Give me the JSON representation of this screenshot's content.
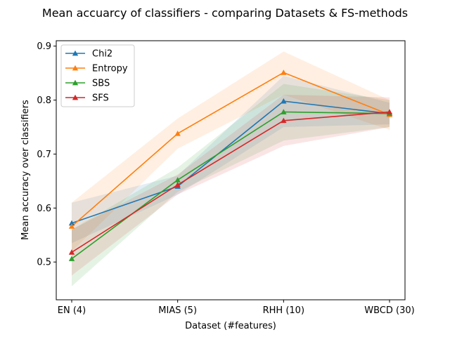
{
  "chart_data": {
    "type": "line",
    "title": "Mean accuarcy of classifiers - comparing Datasets & FS-methods",
    "xlabel": "Dataset (#features)",
    "ylabel": "Mean accuracy over classifiers",
    "categories": [
      "EN (4)",
      "MIAS (5)",
      "RHH (10)",
      "WBCD (30)"
    ],
    "ylim": [
      0.43,
      0.91
    ],
    "yticks": [
      0.5,
      0.6,
      0.7,
      0.8,
      0.9
    ],
    "ytick_labels": [
      "0.5",
      "0.6",
      "0.7",
      "0.8",
      "0.9"
    ],
    "grid": false,
    "legend_position": "top-left",
    "marker": "triangle-up",
    "band_opacity": 0.12,
    "series": [
      {
        "name": "Chi2",
        "color": "#1f77b4",
        "values": [
          0.572,
          0.64,
          0.798,
          0.775
        ],
        "lower": [
          0.535,
          0.625,
          0.75,
          0.755
        ],
        "upper": [
          0.61,
          0.66,
          0.845,
          0.795
        ]
      },
      {
        "name": "Entropy",
        "color": "#ff7f0e",
        "values": [
          0.566,
          0.738,
          0.851,
          0.773
        ],
        "lower": [
          0.52,
          0.71,
          0.81,
          0.745
        ],
        "upper": [
          0.61,
          0.766,
          0.89,
          0.8
        ]
      },
      {
        "name": "SBS",
        "color": "#2ca02c",
        "values": [
          0.506,
          0.652,
          0.778,
          0.775
        ],
        "lower": [
          0.455,
          0.63,
          0.725,
          0.75
        ],
        "upper": [
          0.56,
          0.675,
          0.83,
          0.8
        ]
      },
      {
        "name": "SFS",
        "color": "#d62728",
        "values": [
          0.518,
          0.643,
          0.762,
          0.778
        ],
        "lower": [
          0.475,
          0.625,
          0.715,
          0.75
        ],
        "upper": [
          0.56,
          0.662,
          0.81,
          0.805
        ]
      }
    ]
  }
}
